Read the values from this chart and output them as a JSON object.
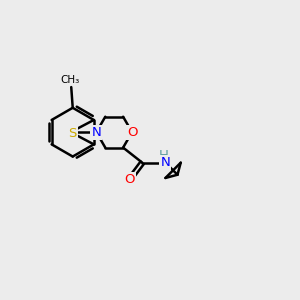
{
  "bg_color": "#ececec",
  "atom_colors": {
    "C": "#000000",
    "N": "#0000ff",
    "O": "#ff0000",
    "S": "#ccaa00",
    "H": "#5f9ea0"
  },
  "bond_color": "#000000",
  "bond_width": 1.8,
  "font_size": 9.5,
  "xlim": [
    0,
    10
  ],
  "ylim": [
    0,
    10
  ]
}
